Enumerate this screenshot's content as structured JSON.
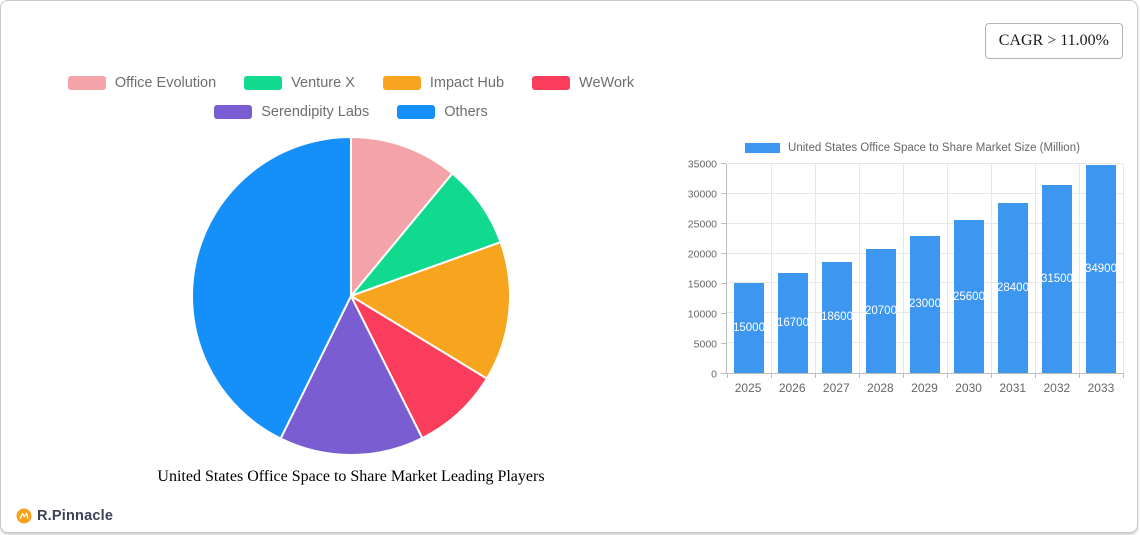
{
  "badge": {
    "text": "CAGR > 11.00%"
  },
  "brand": {
    "name": "R.Pinnacle",
    "icon_color": "#F6A21D",
    "name_color": "#3C4257"
  },
  "chart_data": [
    {
      "type": "pie",
      "title": "United States Office Space to Share Market Leading Players",
      "legend_position": "top",
      "legend_row_break": 4,
      "start_angle": "top",
      "direction": "clockwise",
      "units": "percent share (estimated from slice angles)",
      "slices": [
        {
          "label": "Office Evolution",
          "value": 11.0,
          "color": "#F4A3A8"
        },
        {
          "label": "Venture X",
          "value": 8.5,
          "color": "#11D98E"
        },
        {
          "label": "Impact Hub",
          "value": 14.2,
          "color": "#F7A51E"
        },
        {
          "label": "WeWork",
          "value": 8.9,
          "color": "#FA3D5C"
        },
        {
          "label": "Serendipity Labs",
          "value": 14.7,
          "color": "#7A5ED1"
        },
        {
          "label": "Others",
          "value": 42.7,
          "color": "#1490F8"
        }
      ]
    },
    {
      "type": "bar",
      "legend_position": "top",
      "categories": [
        "2025",
        "2026",
        "2027",
        "2028",
        "2029",
        "2030",
        "2031",
        "2032",
        "2033"
      ],
      "series": [
        {
          "name": "United States Office Space to Share Market Size (Million)",
          "values": [
            15000,
            16700,
            18600,
            20700,
            23000,
            25600,
            28400,
            31500,
            34900
          ]
        }
      ],
      "bar_color": "#3D96F0",
      "value_labels": true,
      "value_label_color": "#FFFFFF",
      "grid": true,
      "ylim": [
        0,
        35000
      ],
      "yticks": [
        0,
        5000,
        10000,
        15000,
        20000,
        25000,
        30000,
        35000
      ]
    }
  ]
}
